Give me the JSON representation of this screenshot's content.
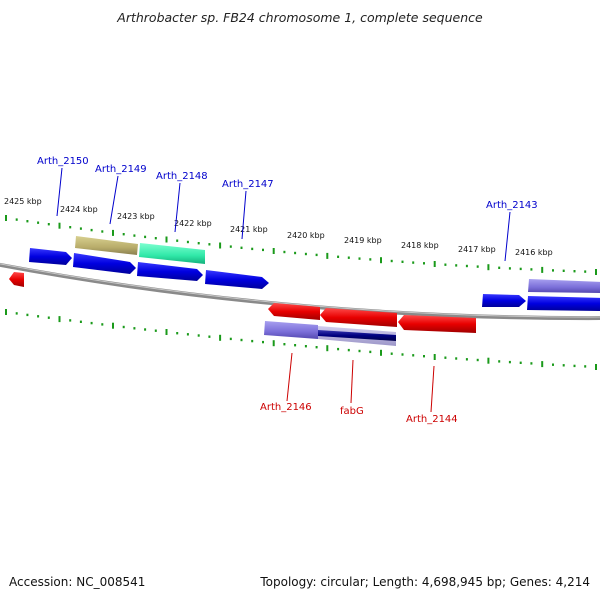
{
  "title": "Arthrobacter sp. FB24 chromosome 1, complete sequence",
  "accession": "Accession: NC_008541",
  "summary": "Topology: circular; Length: 4,698,945 bp; Genes: 4,214",
  "colors": {
    "forward_label": "#0000cc",
    "reverse_label": "#cc0000",
    "tick": "#1a9a1a",
    "backbone": "#888888"
  },
  "kbp_labels": [
    "2425 kbp",
    "2424 kbp",
    "2423 kbp",
    "2422 kbp",
    "2421 kbp",
    "2420 kbp",
    "2419 kbp",
    "2418 kbp",
    "2417 kbp",
    "2416 kbp"
  ],
  "forward_gene_labels": [
    "Arth_2150",
    "Arth_2149",
    "Arth_2148",
    "Arth_2147",
    "Arth_2143"
  ],
  "reverse_gene_labels": [
    "Arth_2146",
    "fabG",
    "Arth_2144"
  ]
}
